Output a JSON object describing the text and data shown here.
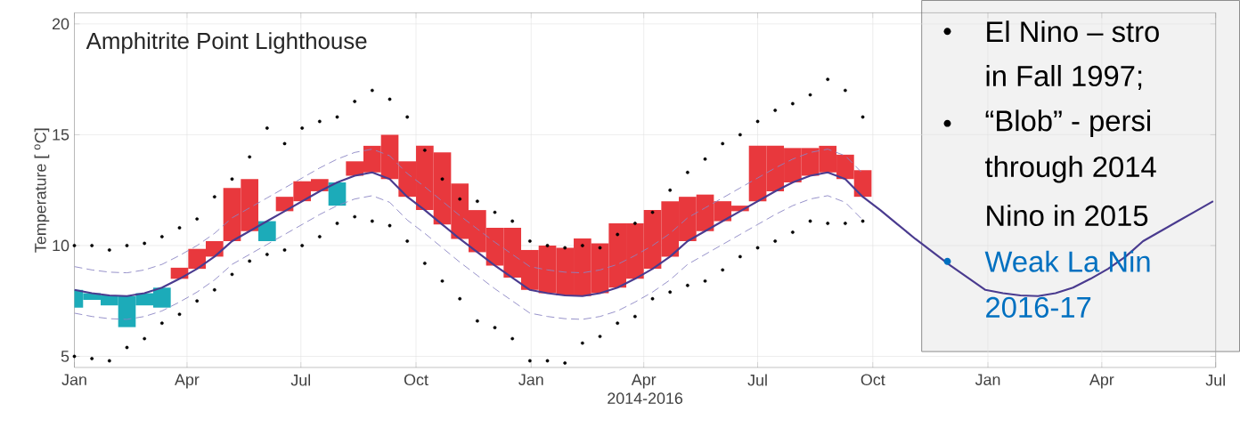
{
  "chart_data": {
    "type": "bar",
    "title": "Amphitrite Point Lighthouse",
    "xlabel": "2014-2016",
    "ylabel": "Temperature [ $^{o}$C]",
    "x": [
      "2014-01-01",
      "2014-01-15",
      "2014-01-29",
      "2014-02-12",
      "2014-02-26",
      "2014-03-12",
      "2014-03-26",
      "2014-04-09",
      "2014-04-23",
      "2014-05-07",
      "2014-05-21",
      "2014-06-04",
      "2014-06-18",
      "2014-07-02",
      "2014-07-16",
      "2014-07-30",
      "2014-08-13",
      "2014-08-27",
      "2014-09-10",
      "2014-09-24",
      "2014-10-08",
      "2014-10-22",
      "2014-11-05",
      "2014-11-19",
      "2014-12-03",
      "2014-12-17",
      "2014-12-31",
      "2015-01-14",
      "2015-01-28",
      "2015-02-11",
      "2015-02-25",
      "2015-03-11",
      "2015-03-25",
      "2015-04-08",
      "2015-04-22",
      "2015-05-06",
      "2015-05-20",
      "2015-06-03",
      "2015-06-17",
      "2015-07-01",
      "2015-07-15",
      "2015-07-29",
      "2015-08-12",
      "2015-08-26",
      "2015-09-09",
      "2015-09-23"
    ],
    "series": [
      {
        "values": [
          -0.8,
          -0.3,
          -0.45,
          -1.4,
          -0.55,
          -0.9,
          0.5,
          0.9,
          0.7,
          2.4,
          2.35,
          -0.9,
          0.65,
          0.9,
          0.55,
          -1.05,
          0.65,
          1.2,
          2.0,
          1.6,
          2.9,
          3.25,
          2.5,
          1.9,
          1.7,
          2.25,
          1.8,
          2.15,
          2.15,
          2.6,
          2.25,
          2.9,
          2.5,
          2.65,
          2.5,
          2.0,
          1.65,
          0.9,
          0.25,
          2.5,
          2.05,
          1.55,
          1.25,
          1.2,
          1.1,
          1.2
        ],
        "base": [
          8.0,
          7.85,
          7.75,
          7.72,
          7.85,
          8.1,
          8.5,
          8.95,
          9.5,
          10.2,
          10.65,
          11.1,
          11.55,
          12.0,
          12.45,
          12.85,
          13.15,
          13.3,
          13.0,
          12.2,
          11.6,
          10.95,
          10.3,
          9.7,
          9.1,
          8.55,
          8.0,
          7.85,
          7.75,
          7.72,
          7.85,
          8.1,
          8.5,
          8.95,
          9.5,
          10.2,
          10.65,
          11.1,
          11.55,
          12.0,
          12.45,
          12.85,
          13.15,
          13.3,
          13.0,
          12.2
        ],
        "colors": [
          "#1cabb9",
          "#1cabb9",
          "#1cabb9",
          "#1cabb9",
          "#1cabb9",
          "#1cabb9",
          "#e8383d",
          "#e8383d",
          "#e8383d",
          "#e8383d",
          "#e8383d",
          "#1cabb9",
          "#e8383d",
          "#e8383d",
          "#e8383d",
          "#1cabb9",
          "#e8383d",
          "#e8383d",
          "#e8383d",
          "#e8383d",
          "#e8383d",
          "#e8383d",
          "#e8383d",
          "#e8383d",
          "#e8383d",
          "#e8383d",
          "#e8383d",
          "#e8383d",
          "#e8383d",
          "#e8383d",
          "#e8383d",
          "#e8383d",
          "#e8383d",
          "#e8383d",
          "#e8383d",
          "#e8383d",
          "#e8383d",
          "#e8383d",
          "#e8383d",
          "#e8383d",
          "#e8383d",
          "#e8383d",
          "#e8383d",
          "#e8383d",
          "#e8383d",
          "#e8383d"
        ]
      },
      {
        "type": "line",
        "color": "#8a84c4",
        "line_style": "dashed",
        "values": [
          9.05,
          8.9,
          8.8,
          8.77,
          8.9,
          9.15,
          9.55,
          10.0,
          10.55,
          11.25,
          11.7,
          12.15,
          12.6,
          13.05,
          13.5,
          13.9,
          14.2,
          14.35,
          14.05,
          13.25,
          12.65,
          12.0,
          11.35,
          10.75,
          10.15,
          9.6,
          9.05,
          8.9,
          8.8,
          8.77,
          8.9,
          9.15,
          9.55,
          10.0,
          10.55,
          11.25,
          11.7,
          12.15,
          12.6,
          13.05,
          13.5,
          13.9,
          14.2,
          14.35,
          14.05,
          13.25
        ]
      },
      {
        "type": "line",
        "color": "#8a84c4",
        "line_style": "dashed",
        "values": [
          6.95,
          6.8,
          6.7,
          6.67,
          6.8,
          7.05,
          7.45,
          7.9,
          8.45,
          9.15,
          9.6,
          10.05,
          10.5,
          10.95,
          11.4,
          11.8,
          12.1,
          12.25,
          11.95,
          11.15,
          10.55,
          9.9,
          9.25,
          8.65,
          8.05,
          7.5,
          6.95,
          6.8,
          6.7,
          6.67,
          6.8,
          7.05,
          7.45,
          7.9,
          8.45,
          9.15,
          9.6,
          10.05,
          10.5,
          10.95,
          11.4,
          11.8,
          12.1,
          12.25,
          11.95,
          11.15
        ]
      },
      {
        "type": "line",
        "color": "#4a3b8f",
        "line_style": "solid",
        "x": [
          "2014-01-01",
          "2014-01-15",
          "2014-01-29",
          "2014-02-12",
          "2014-02-26",
          "2014-03-12",
          "2014-03-26",
          "2014-04-09",
          "2014-04-23",
          "2014-05-07",
          "2014-05-21",
          "2014-06-04",
          "2014-06-18",
          "2014-07-02",
          "2014-07-16",
          "2014-07-30",
          "2014-08-13",
          "2014-08-27",
          "2014-09-10",
          "2014-09-24",
          "2014-10-08",
          "2014-10-22",
          "2014-11-05",
          "2014-11-19",
          "2014-12-03",
          "2014-12-17",
          "2014-12-31",
          "2015-01-14",
          "2015-01-28",
          "2015-02-11",
          "2015-02-25",
          "2015-03-11",
          "2015-03-25",
          "2015-04-08",
          "2015-04-22",
          "2015-05-06",
          "2015-05-20",
          "2015-06-03",
          "2015-06-17",
          "2015-07-01",
          "2015-07-15",
          "2015-07-29",
          "2015-08-12",
          "2015-08-26",
          "2015-09-09",
          "2015-09-23",
          "2015-10-07",
          "2015-10-21",
          "2015-11-04",
          "2015-11-18",
          "2015-12-02",
          "2015-12-16",
          "2015-12-30",
          "2016-01-13",
          "2016-01-27",
          "2016-02-10",
          "2016-02-24",
          "2016-03-09",
          "2016-03-23",
          "2016-04-06",
          "2016-04-20",
          "2016-05-04",
          "2016-05-18",
          "2016-06-01",
          "2016-06-15",
          "2016-06-29"
        ],
        "values": [
          8.0,
          7.85,
          7.75,
          7.72,
          7.85,
          8.1,
          8.5,
          8.95,
          9.5,
          10.2,
          10.65,
          11.1,
          11.55,
          12.0,
          12.45,
          12.85,
          13.15,
          13.3,
          13.0,
          12.2,
          11.6,
          10.95,
          10.3,
          9.7,
          9.1,
          8.55,
          8.0,
          7.85,
          7.75,
          7.72,
          7.85,
          8.1,
          8.5,
          8.95,
          9.5,
          10.2,
          10.65,
          11.1,
          11.55,
          12.0,
          12.45,
          12.85,
          13.15,
          13.3,
          13.0,
          12.2,
          11.6,
          10.95,
          10.3,
          9.7,
          9.1,
          8.55,
          8.0,
          7.85,
          7.75,
          7.72,
          7.85,
          8.1,
          8.5,
          8.95,
          9.5,
          10.2,
          10.65,
          11.1,
          11.55,
          12.0
        ]
      },
      {
        "type": "scatter",
        "color": "#000000",
        "marker": "circle",
        "values": [
          10.0,
          10.0,
          9.8,
          10.0,
          10.1,
          10.4,
          10.8,
          11.2,
          12.2,
          13.0,
          14.0,
          15.3,
          14.6,
          15.3,
          15.6,
          15.8,
          16.5,
          17.0,
          16.6,
          15.8,
          14.3,
          13.0,
          12.1,
          12.0,
          11.5,
          11.1,
          10.2,
          10.0,
          9.9,
          10.0,
          9.9,
          10.5,
          11.0,
          11.5,
          12.5,
          13.3,
          13.9,
          14.6,
          15.0,
          15.6,
          16.1,
          16.4,
          16.8,
          17.5,
          17.0,
          15.8
        ]
      },
      {
        "type": "scatter",
        "color": "#000000",
        "marker": "circle",
        "values": [
          5.0,
          4.9,
          4.8,
          5.4,
          5.8,
          6.5,
          6.9,
          7.5,
          8.0,
          8.7,
          9.3,
          9.6,
          9.8,
          10.0,
          10.4,
          11.0,
          11.3,
          11.1,
          10.9,
          10.2,
          9.2,
          8.4,
          7.6,
          6.6,
          6.3,
          5.8,
          4.8,
          4.8,
          4.7,
          5.6,
          5.9,
          6.5,
          6.8,
          7.6,
          7.9,
          8.2,
          8.4,
          8.9,
          9.5,
          9.9,
          10.2,
          10.6,
          11.1,
          11.0,
          11.0,
          11.1
        ]
      }
    ],
    "xlim": [
      "2014-01-01",
      "2016-07-01"
    ],
    "xticks": [
      {
        "value": "2014-01-01",
        "label": "Jan"
      },
      {
        "value": "2014-04-01",
        "label": "Apr"
      },
      {
        "value": "2014-07-01",
        "label": "Jul"
      },
      {
        "value": "2014-10-01",
        "label": "Oct"
      },
      {
        "value": "2015-01-01",
        "label": "Jan"
      },
      {
        "value": "2015-04-01",
        "label": "Apr"
      },
      {
        "value": "2015-07-01",
        "label": "Jul"
      },
      {
        "value": "2015-10-01",
        "label": "Oct"
      },
      {
        "value": "2016-01-01",
        "label": "Jan"
      },
      {
        "value": "2016-04-01",
        "label": "Apr"
      },
      {
        "value": "2016-07-01",
        "label": "Jul"
      }
    ],
    "ylim": [
      4.5,
      20.5
    ],
    "yticks": [
      5,
      10,
      15,
      20
    ],
    "grid": true,
    "annotations": [
      "El Nino – stro",
      "in Fall 1997;",
      "“Blob” - persi",
      "through 2014",
      "Nino in 2015",
      "Weak La Nin",
      "2016-17"
    ]
  }
}
